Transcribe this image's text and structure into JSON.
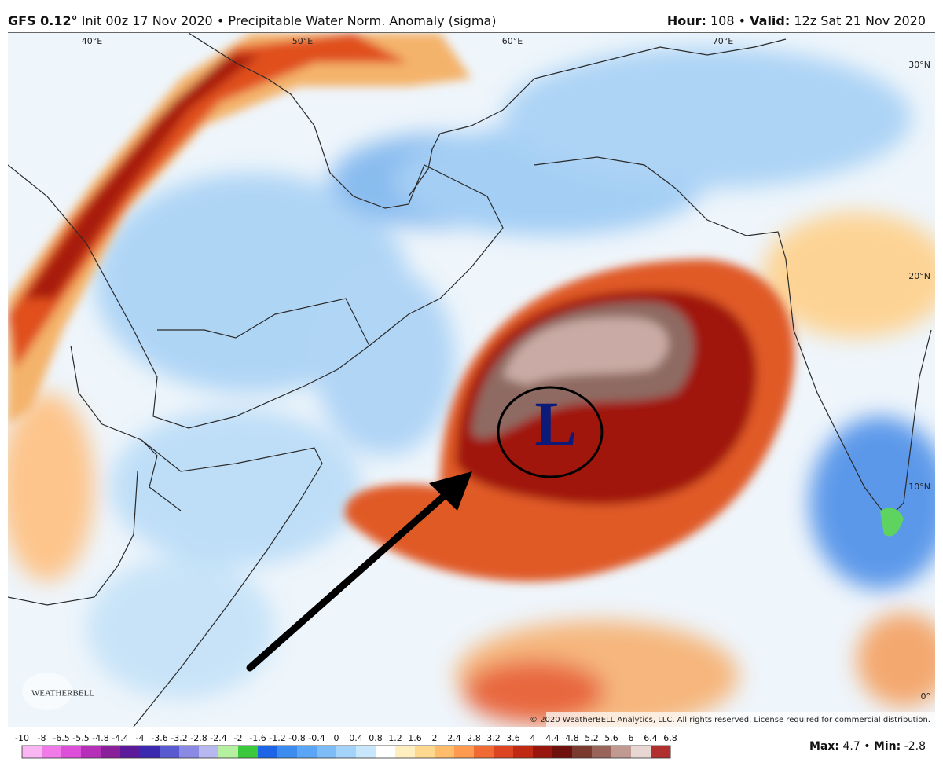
{
  "header": {
    "model": "GFS 0.12°",
    "run": "Init 00z 17 Nov 2020",
    "separator": "•",
    "product": "Precipitable Water Norm. Anomaly (sigma)",
    "hour_label": "Hour:",
    "hour": "108",
    "valid_label": "Valid:",
    "valid": "12z Sat 21 Nov 2020"
  },
  "map": {
    "lon_labels": [
      "40°E",
      "50°E",
      "60°E",
      "70°E"
    ],
    "lat_labels": [
      "30°N",
      "20°N",
      "10°N",
      "0°"
    ],
    "low_label": "L",
    "logo": "WEATHERBELL",
    "copyright": "© 2020 WeatherBELL Analytics, LLC. All rights reserved. License required for commercial distribution."
  },
  "colorbar": {
    "ticks": [
      -10,
      -8,
      -6.5,
      -5.5,
      -4.8,
      -4.4,
      -4,
      -3.6,
      -3.2,
      -2.8,
      -2.4,
      -2,
      -1.6,
      -1.2,
      -0.8,
      -0.4,
      0,
      0.4,
      0.8,
      1.2,
      1.6,
      2,
      2.4,
      2.8,
      3.2,
      3.6,
      4,
      4.4,
      4.8,
      5.2,
      5.6,
      6,
      6.4,
      6.8
    ],
    "colors": [
      "#f9b6f3",
      "#f07ae8",
      "#dd4fd8",
      "#b62fb8",
      "#8a1f9a",
      "#5a1a9a",
      "#3b2ab0",
      "#5a5ad0",
      "#8a8ae4",
      "#b8b8f0",
      "#b4f0a0",
      "#3cc83c",
      "#1e64e6",
      "#3c8cf0",
      "#5aa5f5",
      "#7dbcf7",
      "#a3d3fa",
      "#c8e6fc",
      "#ffffff",
      "#ffeec0",
      "#ffd890",
      "#ffbc6a",
      "#ff9a50",
      "#f06a34",
      "#dc4422",
      "#c02a14",
      "#98160e",
      "#6e100c",
      "#7a3a30",
      "#98645a",
      "#c09a90",
      "#e8d6d2",
      "#b03030"
    ]
  },
  "stats": {
    "max_label": "Max:",
    "max": 4.7,
    "separator": "•",
    "min_label": "Min:",
    "min": -2.8
  }
}
